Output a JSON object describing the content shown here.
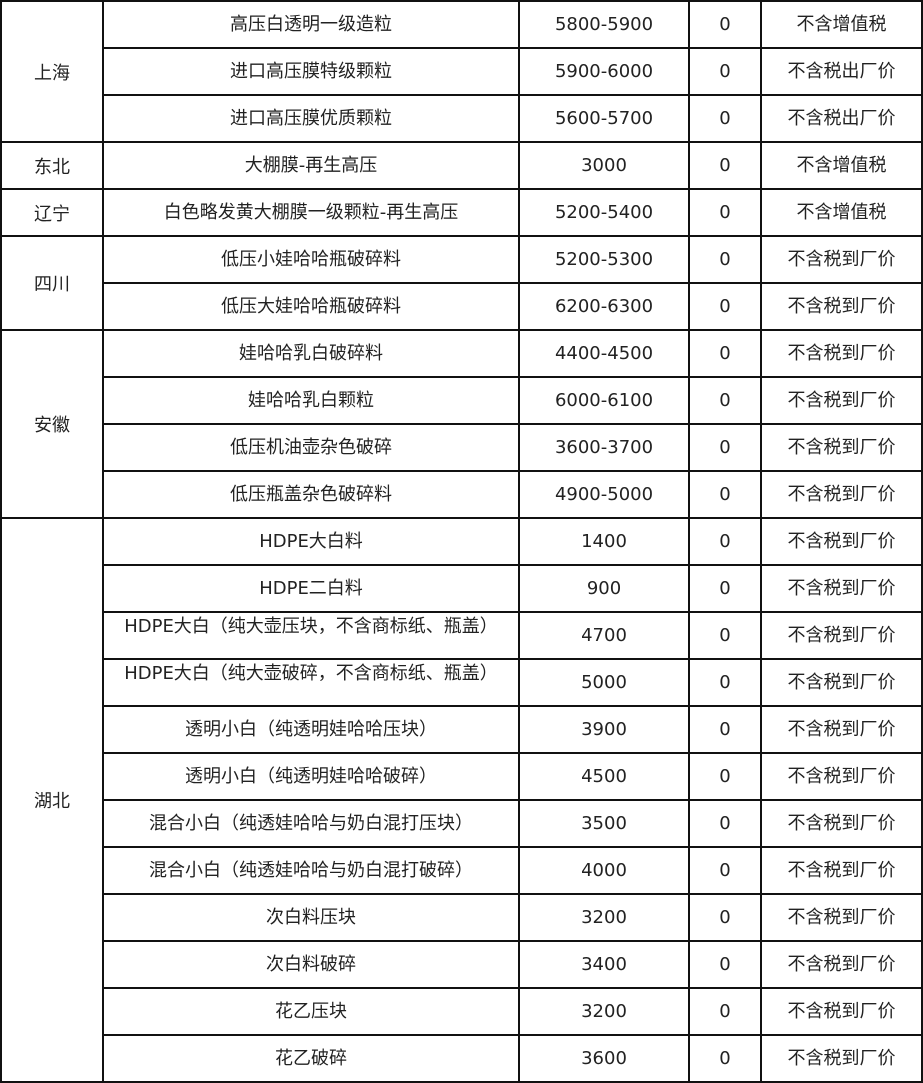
{
  "groups": [
    {
      "region": "上海",
      "rows": [
        [
          "高压白透明一级造粒",
          "5800-5900",
          "0",
          "不含增值税"
        ],
        [
          "进口高压膜特级颗粒",
          "5900-6000",
          "0",
          "不含税出厂价"
        ],
        [
          "进口高压膜优质颗粒",
          "5600-5700",
          "0",
          "不含税出厂价"
        ]
      ]
    },
    {
      "region": "东北",
      "rows": [
        [
          "大棚膜-再生高压",
          "3000",
          "0",
          "不含增值税"
        ]
      ]
    },
    {
      "region": "辽宁",
      "rows": [
        [
          "白色略发黄大棚膜一级颗粒-再生高压",
          "5200-5400",
          "0",
          "不含增值税"
        ]
      ]
    },
    {
      "region": "四川",
      "rows": [
        [
          "低压小娃哈哈瓶破碎料",
          "5200-5300",
          "0",
          "不含税到厂价"
        ],
        [
          "低压大娃哈哈瓶破碎料",
          "6200-6300",
          "0",
          "不含税到厂价"
        ]
      ]
    },
    {
      "region": "安徽",
      "rows": [
        [
          "娃哈哈乳白破碎料",
          "4400-4500",
          "0",
          "不含税到厂价"
        ],
        [
          "娃哈哈乳白颗粒",
          "6000-6100",
          "0",
          "不含税到厂价"
        ],
        [
          "低压机油壶杂色破碎",
          "3600-3700",
          "0",
          "不含税到厂价"
        ],
        [
          "低压瓶盖杂色破碎料",
          "4900-5000",
          "0",
          "不含税到厂价"
        ]
      ]
    },
    {
      "region": "湖北",
      "rows": [
        [
          "HDPE大白料",
          "1400",
          "0",
          "不含税到厂价"
        ],
        [
          "HDPE二白料",
          "900",
          "0",
          "不含税到厂价"
        ],
        [
          "HDPE大白（纯大壶压块，不含商标纸、瓶盖）",
          "4700",
          "0",
          "不含税到厂价"
        ],
        [
          "HDPE大白（纯大壶破碎，不含商标纸、瓶盖）",
          "5000",
          "0",
          "不含税到厂价"
        ],
        [
          "透明小白（纯透明娃哈哈压块）",
          "3900",
          "0",
          "不含税到厂价"
        ],
        [
          "透明小白（纯透明娃哈哈破碎）",
          "4500",
          "0",
          "不含税到厂价"
        ],
        [
          "混合小白（纯透娃哈哈与奶白混打压块）",
          "3500",
          "0",
          "不含税到厂价"
        ],
        [
          "混合小白（纯透娃哈哈与奶白混打破碎）",
          "4000",
          "0",
          "不含税到厂价"
        ],
        [
          "次白料压块",
          "3200",
          "0",
          "不含税到厂价"
        ],
        [
          "次白料破碎",
          "3400",
          "0",
          "不含税到厂价"
        ],
        [
          "花乙压块",
          "3200",
          "0",
          "不含税到厂价"
        ],
        [
          "花乙破碎",
          "3600",
          "0",
          "不含税到厂价"
        ]
      ]
    }
  ]
}
